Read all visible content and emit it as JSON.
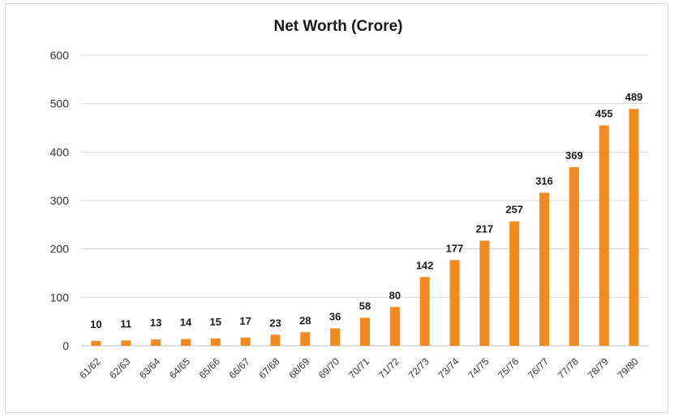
{
  "chart_data": {
    "type": "bar",
    "title": "Net Worth (Crore)",
    "xlabel": "",
    "ylabel": "",
    "categories": [
      "61/62",
      "62/63",
      "63/64",
      "64/65",
      "65/66",
      "66/67",
      "67/68",
      "68/69",
      "69/70",
      "70/71",
      "71/72",
      "72/73",
      "73/74",
      "74/75",
      "75/76",
      "76/77",
      "77/78",
      "78/79",
      "79/80"
    ],
    "values": [
      10,
      11,
      13,
      14,
      15,
      17,
      23,
      28,
      36,
      58,
      80,
      142,
      177,
      217,
      257,
      316,
      369,
      455,
      489
    ],
    "ylim": [
      0,
      600
    ],
    "yticks": [
      0,
      100,
      200,
      300,
      400,
      500,
      600
    ],
    "grid": true,
    "legend": "none",
    "bar_color": "#f28a20"
  }
}
